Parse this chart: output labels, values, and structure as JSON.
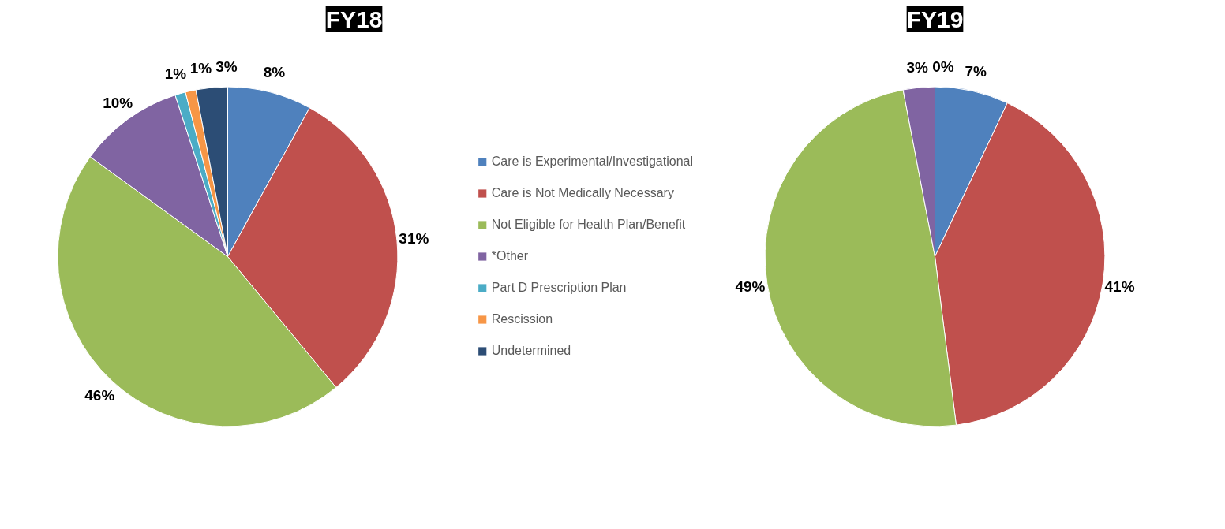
{
  "chart_data": [
    {
      "type": "pie",
      "title": "FY18",
      "categories": [
        "Care is Experimental/Investigational",
        "Care is Not Medically Necessary",
        "Not Eligible for Health Plan/Benefit",
        "*Other",
        "Part D Prescription Plan",
        "Rescission",
        "Undetermined"
      ],
      "values": [
        8,
        31,
        46,
        10,
        1,
        1,
        3
      ],
      "value_labels": [
        "8%",
        "31%",
        "46%",
        "10%",
        "1%",
        "1%",
        "3%"
      ],
      "colors": [
        "#4f81bd",
        "#c0504d",
        "#9bbb59",
        "#8064a2",
        "#4bacc6",
        "#f79646",
        "#2c4d75"
      ],
      "legend": "right"
    },
    {
      "type": "pie",
      "title": "FY19",
      "categories": [
        null,
        null,
        null,
        null,
        null
      ],
      "values": [
        7,
        41,
        49,
        3,
        0
      ],
      "value_labels": [
        "7%",
        "41%",
        "49%",
        "3%",
        "0%"
      ],
      "colors": [
        "#4f81bd",
        "#c0504d",
        "#9bbb59",
        "#8064a2",
        "#4bacc6"
      ],
      "legend": false
    }
  ]
}
